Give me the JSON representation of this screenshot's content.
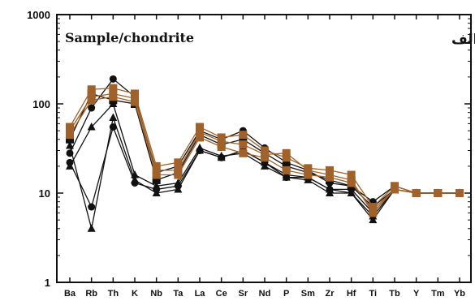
{
  "chart_data": {
    "type": "line",
    "annotation": "Sample/chondrite",
    "panel_label": "الف",
    "yscale": "log",
    "ylim": [
      1,
      1000
    ],
    "yticks": [
      "1",
      "10",
      "100",
      "1000"
    ],
    "grid": false,
    "categories": [
      "Ba",
      "Rb",
      "Th",
      "K",
      "Nb",
      "Ta",
      "La",
      "Ce",
      "Sr",
      "Nd",
      "P",
      "Sm",
      "Zr",
      "Hf",
      "Ti",
      "Tb",
      "Y",
      "Tm",
      "Yb"
    ],
    "series": [
      {
        "color": "#111111",
        "marker": "triangle",
        "values": [
          34,
          4,
          70,
          14,
          10,
          11,
          30,
          25,
          30,
          22,
          16,
          15,
          11,
          10,
          5,
          11,
          10,
          10,
          10
        ]
      },
      {
        "color": "#111111",
        "marker": "triangle",
        "values": [
          20,
          55,
          100,
          16,
          12,
          13,
          32,
          26,
          28,
          20,
          15,
          14,
          10,
          10,
          5.5,
          11,
          10,
          10,
          10
        ]
      },
      {
        "color": "#111111",
        "marker": "circle",
        "values": [
          22,
          7,
          55,
          13,
          11,
          12,
          30,
          25,
          30,
          22,
          15,
          15,
          11,
          11,
          6,
          11,
          10,
          10,
          10
        ]
      },
      {
        "color": "#111111",
        "marker": "circle",
        "values": [
          28,
          90,
          190,
          120,
          17,
          20,
          50,
          40,
          50,
          32,
          22,
          18,
          13,
          12,
          8,
          12,
          10,
          10,
          10
        ]
      },
      {
        "color": "#111111",
        "marker": "square",
        "values": [
          40,
          130,
          110,
          100,
          14,
          17,
          45,
          35,
          40,
          28,
          20,
          17,
          14,
          12,
          7,
          11,
          10,
          10,
          10
        ]
      },
      {
        "color": "#a0622a",
        "marker": "square",
        "values": [
          55,
          145,
          150,
          130,
          20,
          22,
          55,
          42,
          45,
          30,
          25,
          19,
          18,
          16,
          7,
          12,
          10,
          10,
          10
        ]
      },
      {
        "color": "#a0622a",
        "marker": "square",
        "values": [
          50,
          120,
          130,
          115,
          18,
          18,
          48,
          38,
          35,
          27,
          28,
          18,
          16,
          14,
          6,
          11,
          10,
          10,
          10
        ]
      },
      {
        "color": "#a0622a",
        "marker": "square",
        "values": [
          45,
          110,
          120,
          105,
          16,
          16,
          42,
          33,
          28,
          25,
          18,
          16,
          15,
          13,
          6.5,
          11,
          10,
          10,
          10
        ]
      }
    ]
  }
}
